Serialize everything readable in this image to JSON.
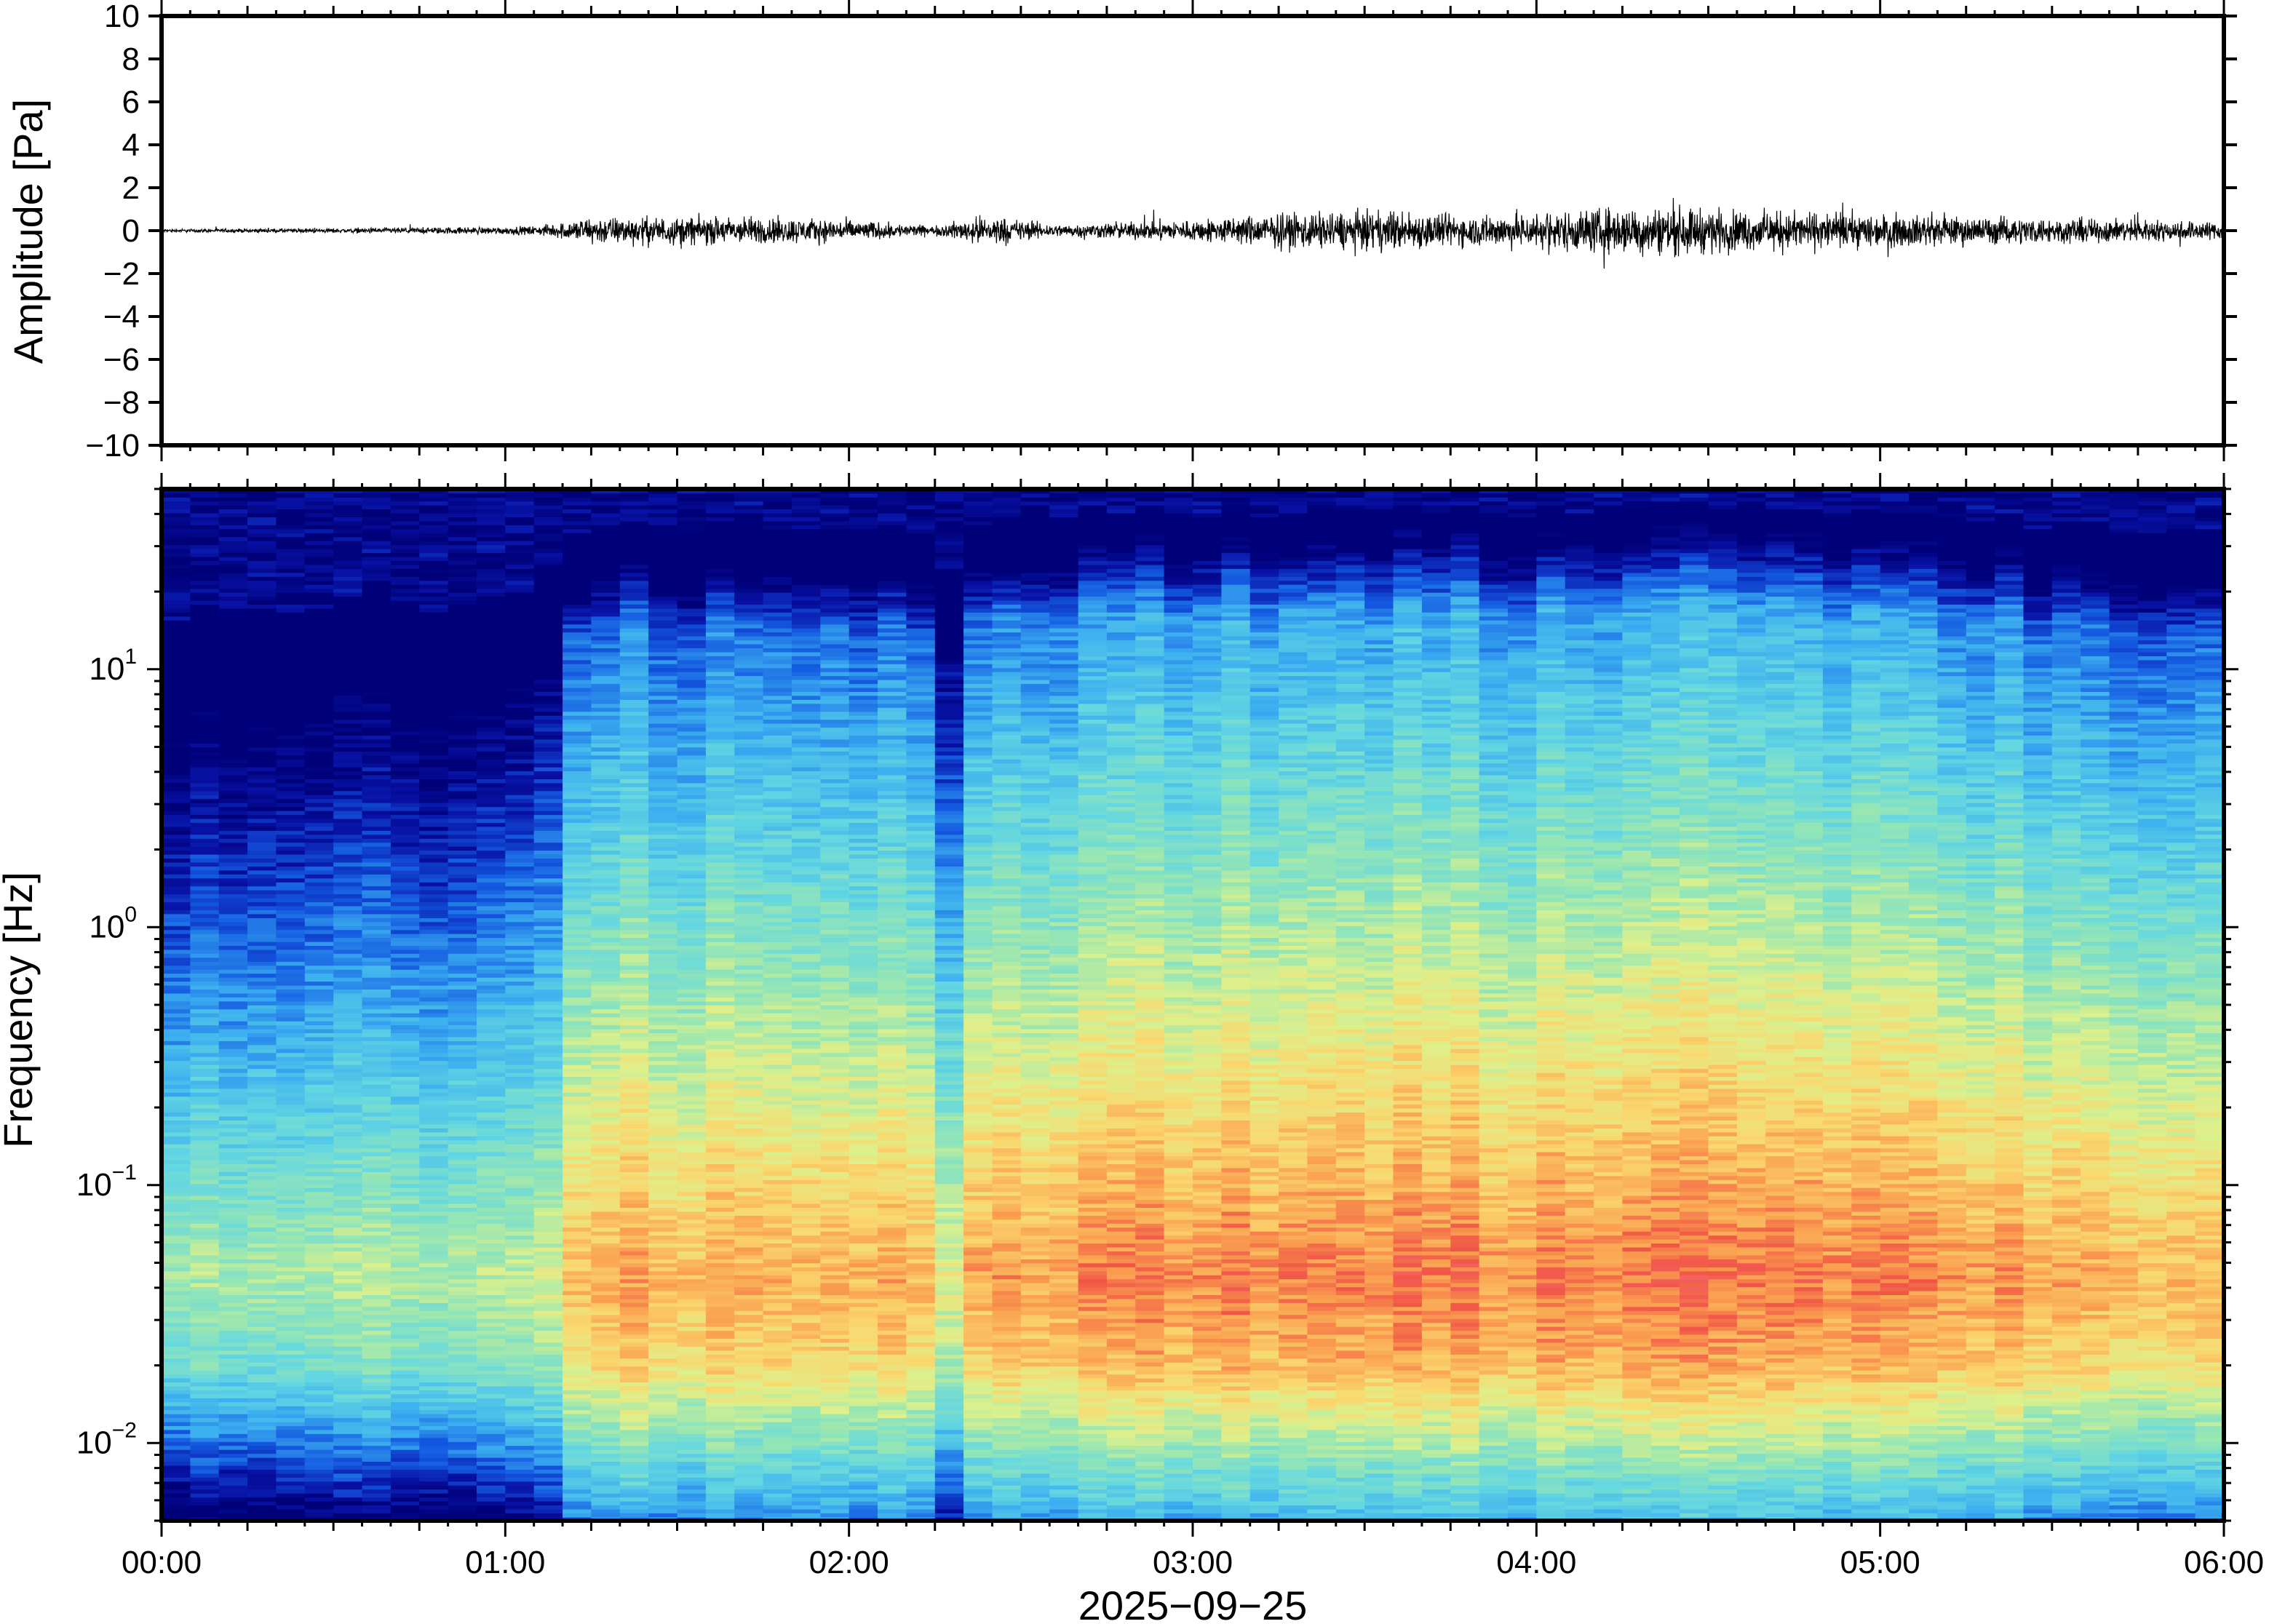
{
  "figure": {
    "date_label": "2025−09−25"
  },
  "chart_data": [
    {
      "type": "line",
      "panel": "waveform",
      "ylabel": "Amplitude [Pa]",
      "xlabel": "",
      "xlim": [
        "00:00",
        "06:00"
      ],
      "ylim": [
        -10,
        10
      ],
      "yticks": [
        10,
        8,
        6,
        4,
        2,
        0,
        -2,
        -4,
        -6,
        -8,
        -10
      ],
      "ytick_labels": [
        "10",
        "8",
        "6",
        "4",
        "2",
        "0",
        "−2",
        "−4",
        "−6",
        "−8",
        "−10"
      ],
      "line_color": "#000000",
      "series": [
        {
          "x_hours": [
            0,
            0.5,
            1.0,
            1.1,
            1.25,
            1.5,
            1.75,
            2.0,
            2.25,
            2.4,
            2.6,
            3.0,
            3.3,
            3.6,
            3.8,
            4.0,
            4.2,
            4.4,
            4.6,
            4.8,
            5.0,
            5.3,
            5.6,
            6.0
          ],
          "envelope_pa": [
            0.1,
            0.15,
            0.25,
            0.3,
            0.9,
            0.9,
            0.9,
            0.7,
            0.3,
            1.0,
            0.4,
            0.7,
            1.2,
            1.3,
            1.0,
            1.2,
            1.5,
            1.6,
            1.3,
            1.2,
            1.1,
            0.9,
            0.8,
            0.6
          ]
        }
      ]
    },
    {
      "type": "heatmap",
      "panel": "spectrogram",
      "ylabel": "Frequency [Hz]",
      "xlabel": "2025−09−25",
      "y_scale": "log",
      "ylim_hz": [
        0.005,
        50
      ],
      "yticks": [
        {
          "base": "10",
          "exp": "1"
        },
        {
          "base": "10",
          "exp": "0"
        },
        {
          "base": "10",
          "exp": "−1"
        },
        {
          "base": "10",
          "exp": "−2"
        }
      ],
      "ytick_values": [
        10,
        1,
        0.1,
        0.01
      ],
      "xticks": [
        "00:00",
        "01:00",
        "02:00",
        "03:00",
        "04:00",
        "05:00",
        "06:00"
      ],
      "colormap": "jet (dark blue low → red high)",
      "colors": {
        "low": "#00008b",
        "mid": "#5ad6e8",
        "mid_high": "#e6f08c",
        "high": "#f0504a"
      },
      "activity_by_hour": {
        "x_hours": [
          0,
          0.5,
          1.0,
          1.1,
          1.25,
          2.2,
          2.3,
          2.4,
          3.0,
          3.5,
          4.0,
          4.5,
          5.0,
          5.5,
          6.0
        ],
        "level": [
          0.2,
          0.25,
          0.3,
          0.35,
          0.75,
          0.7,
          0.45,
          0.8,
          0.85,
          0.9,
          0.85,
          0.9,
          0.85,
          0.75,
          0.7
        ]
      }
    }
  ]
}
